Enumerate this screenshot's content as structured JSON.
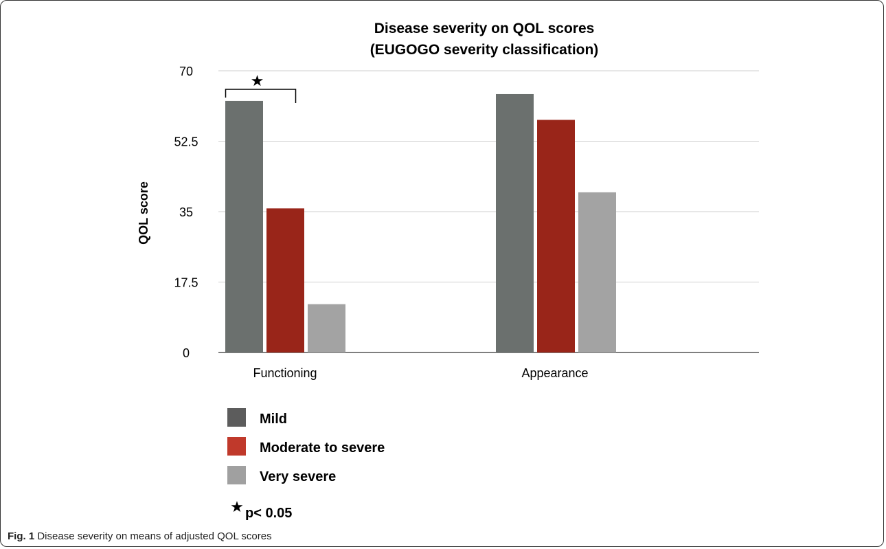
{
  "chart_data": {
    "type": "bar",
    "title": [
      "Disease severity on QOL scores",
      "(EUGOGO severity classification)"
    ],
    "xlabel": "",
    "ylabel": "QOL score",
    "ylim": [
      0,
      70
    ],
    "yticks": [
      "0",
      "17.5",
      "35",
      "52.5",
      "70"
    ],
    "categories": [
      "Functioning",
      "Appearance"
    ],
    "series": [
      {
        "name": "Mild",
        "values": [
          62.5,
          64.2
        ],
        "color": "#6b706e"
      },
      {
        "name": "Moderate to severe",
        "values": [
          35.8,
          57.8
        ],
        "color": "#992519"
      },
      {
        "name": "Very severe",
        "values": [
          12.0,
          39.8
        ],
        "color": "#a3a3a3"
      }
    ],
    "legend_swatch_colors": [
      "#5c5c5c",
      "#c0392b",
      "#a0a0a0"
    ],
    "grid": true,
    "legend_position": "bottom-left",
    "annotation": {
      "symbol": "★",
      "label": "p< 0.05",
      "between": [
        "Mild",
        "Very severe"
      ],
      "category": "Functioning"
    }
  },
  "caption": {
    "label": "Fig. 1",
    "text": " Disease severity on means of adjusted QOL scores"
  }
}
